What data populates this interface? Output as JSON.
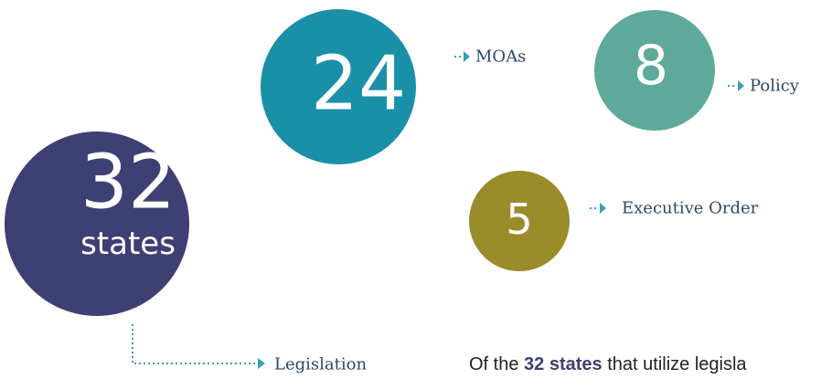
{
  "circles": [
    {
      "number": "32",
      "label": "states"
    },
    {
      "number": "24"
    },
    {
      "number": "8"
    },
    {
      "number": "5"
    }
  ],
  "callouts": [
    "Legislation",
    "MOAs",
    "Policy",
    "Executive Order"
  ],
  "note": {
    "prefix": "Of the",
    "highlight": "32 states",
    "suffix": "that utilize legisla"
  }
}
